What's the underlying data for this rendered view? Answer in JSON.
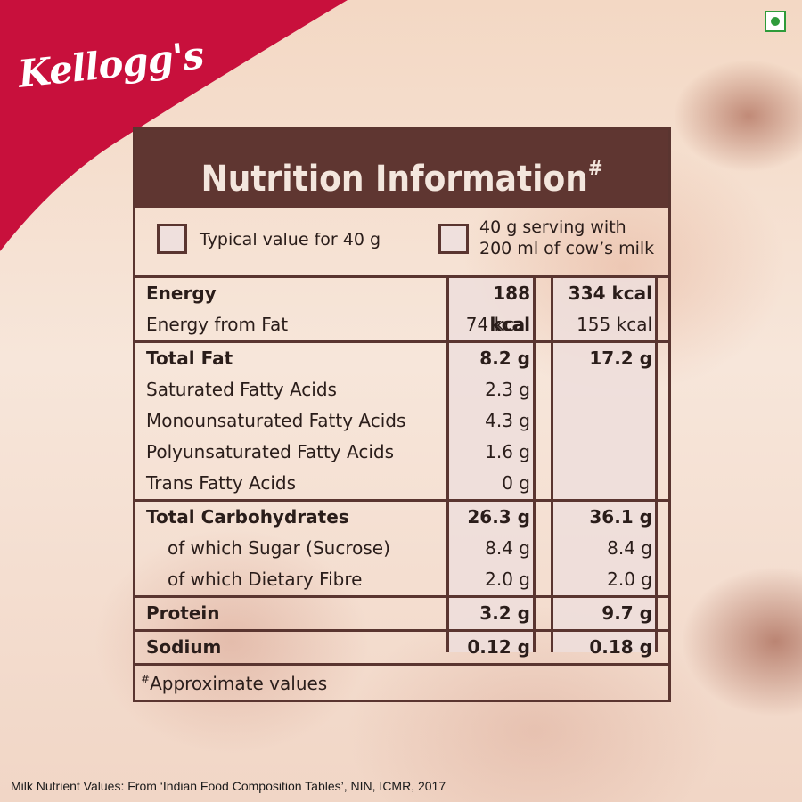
{
  "brand": {
    "name": "Kellogg's",
    "color": "#c8103c"
  },
  "panel": {
    "title": "Nutrition Information",
    "title_mark": "#",
    "legend": [
      {
        "label": "Typical value for 40 g"
      },
      {
        "label_line1": "40 g serving with",
        "label_line2": "200 ml of cow’s milk"
      }
    ],
    "rows": [
      {
        "label": "Energy",
        "v1": "188 kcal",
        "v2": "334 kcal",
        "bold": true
      },
      {
        "label": "Energy from Fat",
        "v1": "74 kcal",
        "v2": "155 kcal"
      },
      {
        "label": "Total Fat",
        "v1": "8.2 g",
        "v2": "17.2 g",
        "bold": true
      },
      {
        "label": "Saturated Fatty Acids",
        "v1": "2.3 g",
        "v2": ""
      },
      {
        "label": "Monounsaturated Fatty Acids",
        "v1": "4.3 g",
        "v2": ""
      },
      {
        "label": "Polyunsaturated Fatty Acids",
        "v1": "1.6 g",
        "v2": ""
      },
      {
        "label": "Trans Fatty Acids",
        "v1": "0 g",
        "v2": ""
      },
      {
        "label": "Total Carbohydrates",
        "v1": "26.3 g",
        "v2": "36.1 g",
        "bold": true
      },
      {
        "label": "of which Sugar (Sucrose)",
        "v1": "8.4 g",
        "v2": "8.4 g",
        "indent": true
      },
      {
        "label": "of which Dietary Fibre",
        "v1": "2.0 g",
        "v2": "2.0 g",
        "indent": true
      },
      {
        "label": "Protein",
        "v1": "3.2 g",
        "v2": "9.7 g",
        "bold": true
      },
      {
        "label": "Sodium",
        "v1": "0.12 g",
        "v2": "0.18 g",
        "bold": true
      }
    ],
    "footnote_mark": "#",
    "footnote": "Approximate values"
  },
  "source": "Milk Nutrient Values: From ‘Indian Food Composition Tables’, NIN, ICMR, 2017",
  "colors": {
    "panel_border": "#5a3530",
    "panel_header": "#5f3631",
    "veg_mark": "#2e9b3a"
  }
}
